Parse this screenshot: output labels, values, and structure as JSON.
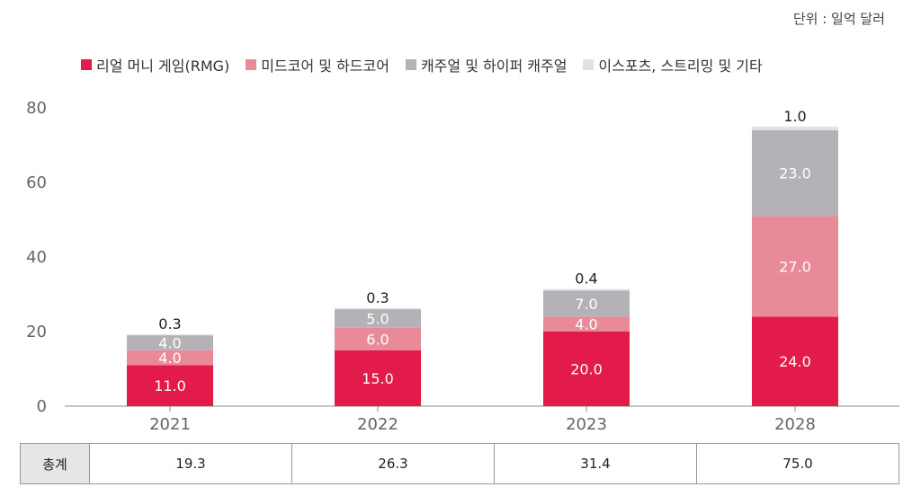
{
  "unit_label": "단위 : 일억 달러",
  "totals_label": "총계",
  "totals": [
    "19.3",
    "26.3",
    "31.4",
    "75.0"
  ],
  "colors": {
    "rmg": "#e31b4a",
    "midcore": "#e88a98",
    "casual": "#b4b2b6",
    "esports": "#e2e2e2",
    "axis": "#8a8a8a",
    "tick_text": "#666666",
    "label_dark": "#222222",
    "label_light": "#ffffff"
  },
  "chart_data": {
    "type": "bar",
    "stacked": true,
    "title": "",
    "categories": [
      "2021",
      "2022",
      "2023",
      "2028"
    ],
    "series": [
      {
        "name": "리얼 머니 게임(RMG)",
        "color_key": "rmg",
        "values": [
          11.0,
          15.0,
          20.0,
          24.0
        ],
        "labels": [
          "11.0",
          "15.0",
          "20.0",
          "24.0"
        ]
      },
      {
        "name": "미드코어 및 하드코어",
        "color_key": "midcore",
        "values": [
          4.0,
          6.0,
          4.0,
          27.0
        ],
        "labels": [
          "4.0",
          "6.0",
          "4.0",
          "27.0"
        ]
      },
      {
        "name": "캐주얼 및 하이퍼 캐주얼",
        "color_key": "casual",
        "values": [
          4.0,
          5.0,
          7.0,
          23.0
        ],
        "labels": [
          "4.0",
          "5.0",
          "7.0",
          "23.0"
        ]
      },
      {
        "name": "이스포츠, 스트리밍 및 기타",
        "color_key": "esports",
        "values": [
          0.3,
          0.3,
          0.4,
          1.0
        ],
        "labels": [
          "0.3",
          "0.3",
          "0.4",
          "1.0"
        ]
      }
    ],
    "ylim": [
      0,
      80
    ],
    "yticks": [
      "0",
      "20",
      "40",
      "60",
      "80"
    ],
    "grid": false,
    "legend": "top"
  }
}
